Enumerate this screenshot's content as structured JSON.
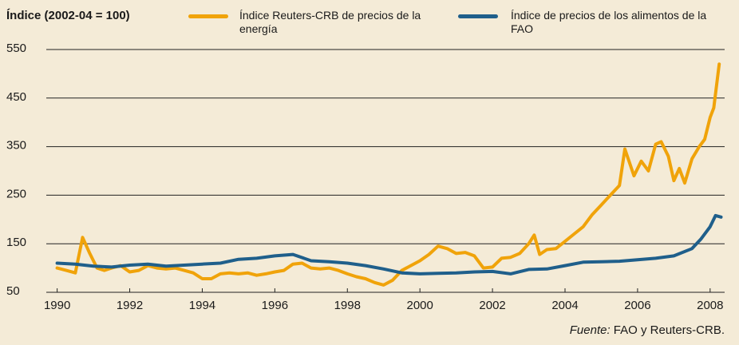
{
  "chart_data": {
    "type": "line",
    "ylabel": "Índice (2002-04 = 100)",
    "source_label": "Fuente:",
    "source": "FAO y Reuters-CRB.",
    "xlim": [
      1989.7,
      2008.4
    ],
    "xticks": [
      1990,
      1992,
      1994,
      1996,
      1998,
      2000,
      2002,
      2004,
      2006,
      2008
    ],
    "ylim": [
      50,
      550
    ],
    "yticks": [
      50,
      150,
      250,
      350,
      450,
      550
    ],
    "grid": true,
    "series": [
      {
        "name": "Índice Reuters-CRB de precios de la energía",
        "color": "#f0a30a",
        "x": [
          1990,
          1990.25,
          1990.5,
          1990.7,
          1990.9,
          1991.1,
          1991.3,
          1991.5,
          1991.75,
          1992,
          1992.25,
          1992.5,
          1992.75,
          1993,
          1993.25,
          1993.5,
          1993.75,
          1994,
          1994.25,
          1994.5,
          1994.75,
          1995,
          1995.25,
          1995.5,
          1995.75,
          1996,
          1996.25,
          1996.5,
          1996.75,
          1997,
          1997.25,
          1997.5,
          1997.75,
          1998,
          1998.25,
          1998.5,
          1998.75,
          1999,
          1999.25,
          1999.5,
          1999.75,
          2000,
          2000.25,
          2000.5,
          2000.75,
          2001,
          2001.25,
          2001.5,
          2001.75,
          2002,
          2002.25,
          2002.5,
          2002.75,
          2003,
          2003.15,
          2003.3,
          2003.5,
          2003.75,
          2004,
          2004.25,
          2004.5,
          2004.75,
          2005,
          2005.25,
          2005.5,
          2005.65,
          2005.9,
          2006.1,
          2006.3,
          2006.5,
          2006.65,
          2006.85,
          2007,
          2007.15,
          2007.3,
          2007.5,
          2007.7,
          2007.85,
          2008,
          2008.1,
          2008.25
        ],
        "values": [
          100,
          95,
          90,
          163,
          130,
          100,
          95,
          100,
          105,
          92,
          95,
          105,
          100,
          98,
          100,
          95,
          90,
          78,
          78,
          88,
          90,
          88,
          90,
          85,
          88,
          92,
          95,
          108,
          110,
          100,
          98,
          100,
          95,
          88,
          82,
          78,
          70,
          65,
          75,
          95,
          105,
          115,
          128,
          145,
          140,
          130,
          132,
          125,
          100,
          102,
          120,
          122,
          130,
          150,
          168,
          128,
          138,
          140,
          155,
          170,
          185,
          210,
          230,
          250,
          270,
          345,
          290,
          320,
          300,
          355,
          360,
          330,
          280,
          305,
          275,
          325,
          350,
          365,
          410,
          430,
          520
        ]
      },
      {
        "name": "Índice de precios de los alimentos de la FAO",
        "color": "#1f5f8b",
        "x": [
          1990,
          1990.5,
          1991,
          1991.5,
          1992,
          1992.5,
          1993,
          1993.5,
          1994,
          1994.5,
          1995,
          1995.5,
          1996,
          1996.5,
          1997,
          1997.5,
          1998,
          1998.5,
          1999,
          1999.5,
          2000,
          2000.5,
          2001,
          2001.5,
          2002,
          2002.5,
          2003,
          2003.5,
          2004,
          2004.5,
          2005,
          2005.5,
          2006,
          2006.5,
          2007,
          2007.5,
          2007.75,
          2008,
          2008.15,
          2008.3
        ],
        "values": [
          110,
          108,
          104,
          102,
          106,
          108,
          104,
          106,
          108,
          110,
          118,
          120,
          125,
          128,
          115,
          113,
          110,
          105,
          98,
          90,
          88,
          89,
          90,
          92,
          93,
          88,
          97,
          98,
          105,
          112,
          113,
          114,
          117,
          120,
          125,
          140,
          160,
          185,
          208,
          205
        ]
      }
    ]
  }
}
